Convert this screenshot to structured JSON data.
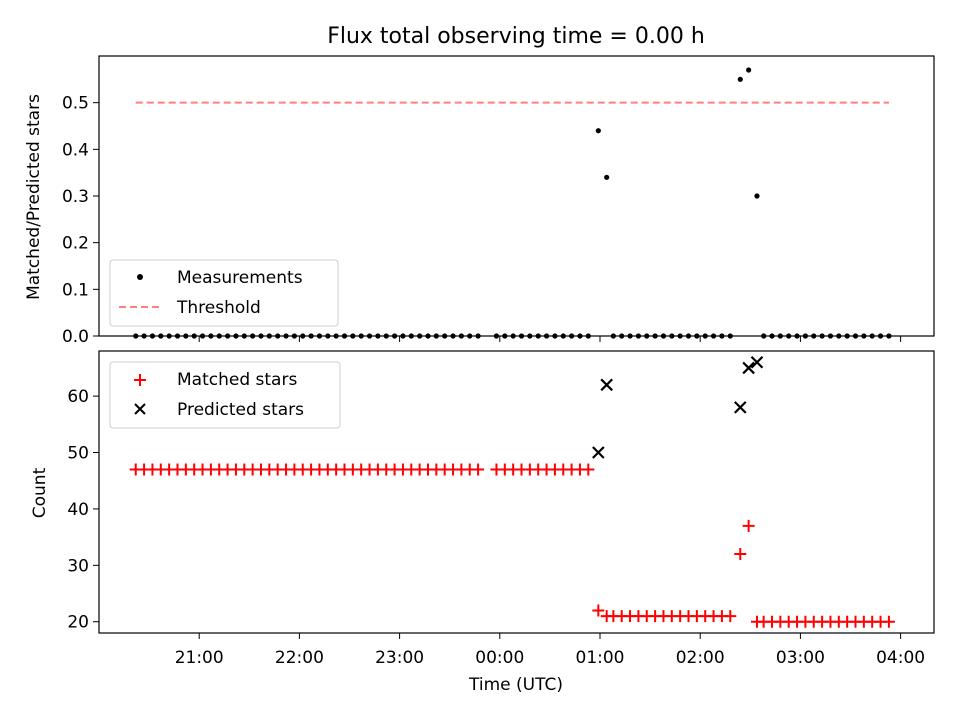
{
  "chart_data": [
    {
      "panel": "top",
      "type": "scatter",
      "title": "Flux total observing time = 0.00 h",
      "ylabel": "Matched/Predicted stars",
      "xlabel": "",
      "ylim": [
        0,
        0.6
      ],
      "yticks": [
        0.0,
        0.1,
        0.2,
        0.3,
        0.4,
        0.5
      ],
      "ytick_labels": [
        "0.0",
        "0.1",
        "0.2",
        "0.3",
        "0.4",
        "0.5"
      ],
      "xlim": [
        "20:00",
        "04:20"
      ],
      "xticks": [
        "21:00",
        "22:00",
        "23:00",
        "00:00",
        "01:00",
        "02:00",
        "03:00",
        "04:00"
      ],
      "legend": {
        "position": "lower-left",
        "entries": [
          {
            "label": "Measurements",
            "marker": "dot",
            "color": "#000000"
          },
          {
            "label": "Threshold",
            "marker": "dashed-line",
            "color": "#ff7f7f"
          }
        ]
      },
      "threshold": {
        "name": "Threshold",
        "value": 0.5,
        "x_start": "20:22",
        "x_end": "03:53",
        "color": "#ff7f7f"
      },
      "series": [
        {
          "name": "Measurements",
          "color": "#000000",
          "points": [
            [
              "20:22",
              0
            ],
            [
              "20:27",
              0
            ],
            [
              "20:32",
              0
            ],
            [
              "20:37",
              0
            ],
            [
              "20:42",
              0
            ],
            [
              "20:47",
              0
            ],
            [
              "20:52",
              0
            ],
            [
              "20:57",
              0
            ],
            [
              "21:02",
              0
            ],
            [
              "21:07",
              0
            ],
            [
              "21:12",
              0
            ],
            [
              "21:17",
              0
            ],
            [
              "21:22",
              0
            ],
            [
              "21:27",
              0
            ],
            [
              "21:32",
              0
            ],
            [
              "21:37",
              0
            ],
            [
              "21:42",
              0
            ],
            [
              "21:47",
              0
            ],
            [
              "21:52",
              0
            ],
            [
              "21:57",
              0
            ],
            [
              "22:02",
              0
            ],
            [
              "22:07",
              0
            ],
            [
              "22:12",
              0
            ],
            [
              "22:17",
              0
            ],
            [
              "22:22",
              0
            ],
            [
              "22:27",
              0
            ],
            [
              "22:32",
              0
            ],
            [
              "22:37",
              0
            ],
            [
              "22:42",
              0
            ],
            [
              "22:47",
              0
            ],
            [
              "22:52",
              0
            ],
            [
              "22:57",
              0
            ],
            [
              "23:02",
              0
            ],
            [
              "23:07",
              0
            ],
            [
              "23:12",
              0
            ],
            [
              "23:17",
              0
            ],
            [
              "23:22",
              0
            ],
            [
              "23:27",
              0
            ],
            [
              "23:32",
              0
            ],
            [
              "23:37",
              0
            ],
            [
              "23:42",
              0
            ],
            [
              "23:47",
              0
            ],
            [
              "23:58",
              0
            ],
            [
              "00:03",
              0
            ],
            [
              "00:08",
              0
            ],
            [
              "00:13",
              0
            ],
            [
              "00:18",
              0
            ],
            [
              "00:23",
              0
            ],
            [
              "00:28",
              0
            ],
            [
              "00:33",
              0
            ],
            [
              "00:38",
              0
            ],
            [
              "00:43",
              0
            ],
            [
              "00:48",
              0
            ],
            [
              "00:53",
              0
            ],
            [
              "00:59",
              0.44
            ],
            [
              "01:04",
              0.34
            ],
            [
              "01:08",
              0
            ],
            [
              "01:13",
              0
            ],
            [
              "01:18",
              0
            ],
            [
              "01:23",
              0
            ],
            [
              "01:28",
              0
            ],
            [
              "01:33",
              0
            ],
            [
              "01:38",
              0
            ],
            [
              "01:43",
              0
            ],
            [
              "01:48",
              0
            ],
            [
              "01:53",
              0
            ],
            [
              "01:58",
              0
            ],
            [
              "02:03",
              0
            ],
            [
              "02:08",
              0
            ],
            [
              "02:13",
              0
            ],
            [
              "02:18",
              0
            ],
            [
              "02:24",
              0.55
            ],
            [
              "02:29",
              0.57
            ],
            [
              "02:34",
              0.3
            ],
            [
              "02:38",
              0
            ],
            [
              "02:43",
              0
            ],
            [
              "02:48",
              0
            ],
            [
              "02:53",
              0
            ],
            [
              "02:58",
              0
            ],
            [
              "03:03",
              0
            ],
            [
              "03:08",
              0
            ],
            [
              "03:13",
              0
            ],
            [
              "03:18",
              0
            ],
            [
              "03:23",
              0
            ],
            [
              "03:28",
              0
            ],
            [
              "03:33",
              0
            ],
            [
              "03:38",
              0
            ],
            [
              "03:43",
              0
            ],
            [
              "03:48",
              0
            ],
            [
              "03:53",
              0
            ]
          ]
        }
      ]
    },
    {
      "panel": "bottom",
      "type": "scatter",
      "title": "",
      "ylabel": "Count",
      "xlabel": "Time (UTC)",
      "ylim": [
        18,
        68
      ],
      "yticks": [
        20,
        30,
        40,
        50,
        60
      ],
      "ytick_labels": [
        "20",
        "30",
        "40",
        "50",
        "60"
      ],
      "xlim": [
        "20:00",
        "04:20"
      ],
      "xticks": [
        "21:00",
        "22:00",
        "23:00",
        "00:00",
        "01:00",
        "02:00",
        "03:00",
        "04:00"
      ],
      "xtick_labels": [
        "21:00",
        "22:00",
        "23:00",
        "00:00",
        "01:00",
        "02:00",
        "03:00",
        "04:00"
      ],
      "legend": {
        "position": "upper-left",
        "entries": [
          {
            "label": "Matched stars",
            "marker": "plus",
            "color": "#ff0000"
          },
          {
            "label": "Predicted stars",
            "marker": "x",
            "color": "#000000"
          }
        ]
      },
      "series": [
        {
          "name": "Matched stars",
          "color": "#ff0000",
          "points": [
            [
              "20:22",
              47
            ],
            [
              "20:27",
              47
            ],
            [
              "20:32",
              47
            ],
            [
              "20:37",
              47
            ],
            [
              "20:42",
              47
            ],
            [
              "20:47",
              47
            ],
            [
              "20:52",
              47
            ],
            [
              "20:57",
              47
            ],
            [
              "21:02",
              47
            ],
            [
              "21:07",
              47
            ],
            [
              "21:12",
              47
            ],
            [
              "21:17",
              47
            ],
            [
              "21:22",
              47
            ],
            [
              "21:27",
              47
            ],
            [
              "21:32",
              47
            ],
            [
              "21:37",
              47
            ],
            [
              "21:42",
              47
            ],
            [
              "21:47",
              47
            ],
            [
              "21:52",
              47
            ],
            [
              "21:57",
              47
            ],
            [
              "22:02",
              47
            ],
            [
              "22:07",
              47
            ],
            [
              "22:12",
              47
            ],
            [
              "22:17",
              47
            ],
            [
              "22:22",
              47
            ],
            [
              "22:27",
              47
            ],
            [
              "22:32",
              47
            ],
            [
              "22:37",
              47
            ],
            [
              "22:42",
              47
            ],
            [
              "22:47",
              47
            ],
            [
              "22:52",
              47
            ],
            [
              "22:57",
              47
            ],
            [
              "23:02",
              47
            ],
            [
              "23:07",
              47
            ],
            [
              "23:12",
              47
            ],
            [
              "23:17",
              47
            ],
            [
              "23:22",
              47
            ],
            [
              "23:27",
              47
            ],
            [
              "23:32",
              47
            ],
            [
              "23:37",
              47
            ],
            [
              "23:42",
              47
            ],
            [
              "23:47",
              47
            ],
            [
              "23:58",
              47
            ],
            [
              "00:03",
              47
            ],
            [
              "00:08",
              47
            ],
            [
              "00:13",
              47
            ],
            [
              "00:18",
              47
            ],
            [
              "00:23",
              47
            ],
            [
              "00:28",
              47
            ],
            [
              "00:33",
              47
            ],
            [
              "00:38",
              47
            ],
            [
              "00:43",
              47
            ],
            [
              "00:48",
              47
            ],
            [
              "00:53",
              47
            ],
            [
              "00:59",
              22
            ],
            [
              "01:04",
              21
            ],
            [
              "01:08",
              21
            ],
            [
              "01:13",
              21
            ],
            [
              "01:18",
              21
            ],
            [
              "01:23",
              21
            ],
            [
              "01:28",
              21
            ],
            [
              "01:33",
              21
            ],
            [
              "01:38",
              21
            ],
            [
              "01:43",
              21
            ],
            [
              "01:48",
              21
            ],
            [
              "01:53",
              21
            ],
            [
              "01:58",
              21
            ],
            [
              "02:03",
              21
            ],
            [
              "02:08",
              21
            ],
            [
              "02:13",
              21
            ],
            [
              "02:18",
              21
            ],
            [
              "02:24",
              32
            ],
            [
              "02:29",
              37
            ],
            [
              "02:34",
              20
            ],
            [
              "02:38",
              20
            ],
            [
              "02:43",
              20
            ],
            [
              "02:48",
              20
            ],
            [
              "02:53",
              20
            ],
            [
              "02:58",
              20
            ],
            [
              "03:03",
              20
            ],
            [
              "03:08",
              20
            ],
            [
              "03:13",
              20
            ],
            [
              "03:18",
              20
            ],
            [
              "03:23",
              20
            ],
            [
              "03:28",
              20
            ],
            [
              "03:33",
              20
            ],
            [
              "03:38",
              20
            ],
            [
              "03:43",
              20
            ],
            [
              "03:48",
              20
            ],
            [
              "03:53",
              20
            ]
          ]
        },
        {
          "name": "Predicted stars",
          "color": "#000000",
          "points": [
            [
              "00:59",
              50
            ],
            [
              "01:04",
              62
            ],
            [
              "02:24",
              58
            ],
            [
              "02:29",
              65
            ],
            [
              "02:34",
              66
            ]
          ]
        }
      ]
    }
  ]
}
